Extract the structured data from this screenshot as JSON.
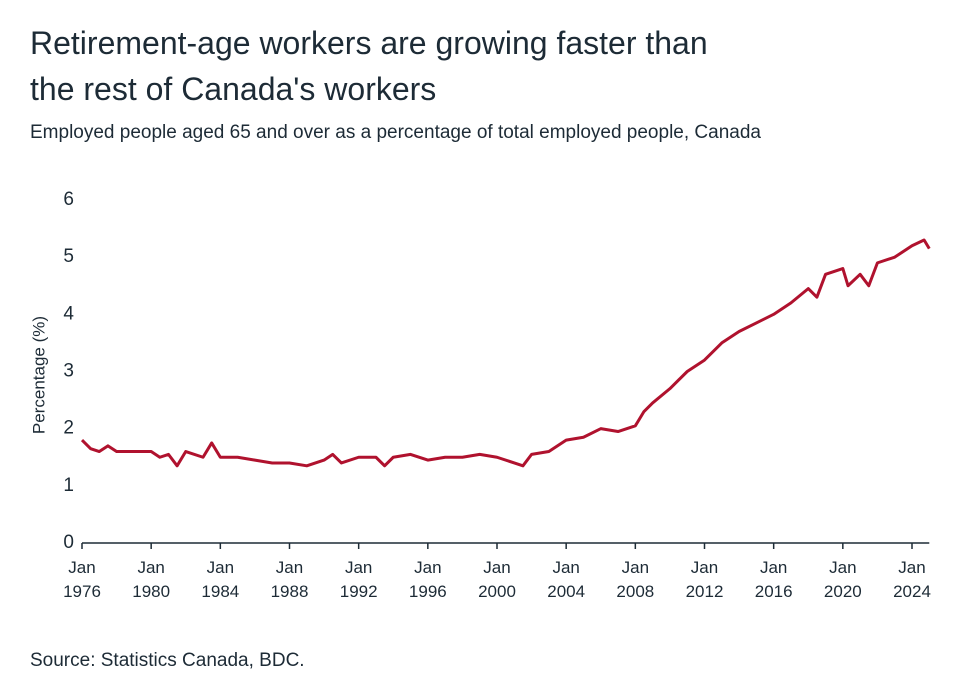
{
  "chart_data": {
    "type": "line",
    "title": "Retirement-age workers are growing faster than the rest of Canada's workers",
    "subtitle": "Employed people aged 65 and over as a percentage of total employed people, Canada",
    "y_label": "Percentage (%)",
    "source": "Source: Statistics Canada, BDC.",
    "x": [
      1976,
      1976.5,
      1977,
      1977.5,
      1978,
      1979,
      1980,
      1980.5,
      1981,
      1981.5,
      1982,
      1983,
      1983.5,
      1984,
      1985,
      1986,
      1987,
      1988,
      1989,
      1990,
      1990.5,
      1991,
      1992,
      1993,
      1993.5,
      1994,
      1995,
      1996,
      1997,
      1998,
      1999,
      2000,
      2001,
      2001.5,
      2002,
      2003,
      2004,
      2005,
      2006,
      2007,
      2008,
      2008.5,
      2009,
      2010,
      2011,
      2012,
      2013,
      2014,
      2015,
      2016,
      2017,
      2018,
      2018.5,
      2019,
      2020,
      2020.3,
      2021,
      2021.5,
      2022,
      2023,
      2024,
      2024.7,
      2025
    ],
    "series": [
      {
        "name": "Employed people aged 65 and over",
        "color": "#b0122e",
        "values": [
          1.8,
          1.65,
          1.6,
          1.7,
          1.6,
          1.6,
          1.6,
          1.5,
          1.55,
          1.35,
          1.6,
          1.5,
          1.75,
          1.5,
          1.5,
          1.45,
          1.4,
          1.4,
          1.35,
          1.45,
          1.55,
          1.4,
          1.5,
          1.5,
          1.35,
          1.5,
          1.55,
          1.45,
          1.5,
          1.5,
          1.55,
          1.5,
          1.4,
          1.35,
          1.55,
          1.6,
          1.8,
          1.85,
          2.0,
          1.95,
          2.05,
          2.3,
          2.45,
          2.7,
          3.0,
          3.2,
          3.5,
          3.7,
          3.85,
          4.0,
          4.2,
          4.45,
          4.3,
          4.7,
          4.8,
          4.5,
          4.7,
          4.5,
          4.9,
          5.0,
          5.2,
          5.3,
          5.15
        ]
      }
    ],
    "xlim": [
      1976,
      2025
    ],
    "xticks": [
      {
        "value": 1976,
        "label": "Jan 1976"
      },
      {
        "value": 1980,
        "label": "Jan 1980"
      },
      {
        "value": 1984,
        "label": "Jan 1984"
      },
      {
        "value": 1988,
        "label": "Jan 1988"
      },
      {
        "value": 1992,
        "label": "Jan 1992"
      },
      {
        "value": 1996,
        "label": "Jan 1996"
      },
      {
        "value": 2000,
        "label": "Jan 2000"
      },
      {
        "value": 2004,
        "label": "Jan 2004"
      },
      {
        "value": 2008,
        "label": "Jan 2008"
      },
      {
        "value": 2012,
        "label": "Jan 2012"
      },
      {
        "value": 2016,
        "label": "Jan 2016"
      },
      {
        "value": 2020,
        "label": "Jan 2020"
      },
      {
        "value": 2024,
        "label": "Jan 2024"
      }
    ],
    "ylim": [
      0,
      6
    ],
    "yticks": [
      0,
      1,
      2,
      3,
      4,
      5,
      6
    ],
    "grid": false
  }
}
